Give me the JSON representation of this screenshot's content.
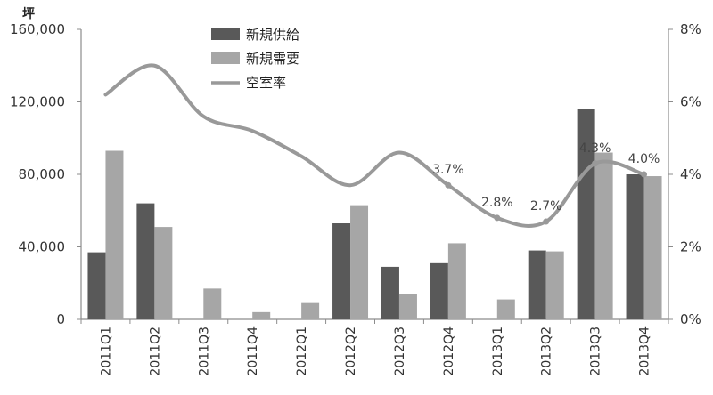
{
  "chart_data": {
    "type": "bar",
    "categories": [
      "2011Q1",
      "2011Q2",
      "2011Q3",
      "2011Q4",
      "2012Q1",
      "2012Q2",
      "2012Q3",
      "2012Q4",
      "2013Q1",
      "2013Q2",
      "2013Q3",
      "2013Q4"
    ],
    "series": [
      {
        "name": "新規供給",
        "kind": "bar",
        "axis": "left",
        "color": "#595959",
        "values": [
          37000,
          64000,
          0,
          0,
          0,
          53000,
          29000,
          31000,
          0,
          38000,
          116000,
          80000
        ]
      },
      {
        "name": "新規需要",
        "kind": "bar",
        "axis": "left",
        "color": "#a6a6a6",
        "values": [
          93000,
          51000,
          17000,
          4000,
          9000,
          63000,
          14000,
          42000,
          11000,
          37500,
          92000,
          79000
        ]
      },
      {
        "name": "空室率",
        "kind": "line",
        "axis": "right",
        "color": "#999999",
        "values": [
          6.2,
          7.0,
          5.6,
          5.2,
          4.5,
          3.7,
          4.6,
          3.7,
          2.8,
          2.7,
          4.3,
          4.0
        ]
      }
    ],
    "data_labels": [
      "",
      "",
      "",
      "",
      "",
      "",
      "",
      "3.7%",
      "2.8%",
      "2.7%",
      "4.3%",
      "4.0%"
    ],
    "y_left": {
      "unit": "坪",
      "ylim": [
        0,
        160000
      ],
      "ticks": [
        "0",
        "40,000",
        "80,000",
        "120,000",
        "160,000"
      ]
    },
    "y_right": {
      "ylim": [
        0,
        8
      ],
      "ticks": [
        "0%",
        "2%",
        "4%",
        "6%",
        "8%"
      ]
    },
    "grid": false,
    "legend_position": "top-left"
  }
}
